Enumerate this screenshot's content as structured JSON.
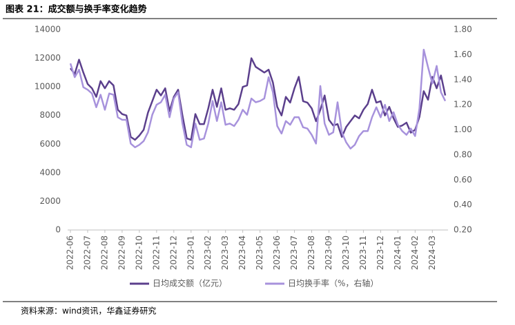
{
  "chart_data": {
    "type": "line",
    "title": "图表 21：成交额与换手率变化趋势",
    "source": "资料来源：wind资讯，华鑫证券研究",
    "categories": [
      "2022-06",
      null,
      null,
      null,
      "2022-07",
      null,
      null,
      null,
      "2022-08",
      null,
      null,
      null,
      "2022-09",
      null,
      null,
      null,
      "2022-10",
      null,
      null,
      null,
      "2022-11",
      null,
      null,
      null,
      "2022-12",
      null,
      null,
      null,
      "2023-01",
      null,
      null,
      null,
      "2023-02",
      null,
      null,
      null,
      "2023-03",
      null,
      null,
      null,
      "2023-04",
      null,
      null,
      null,
      "2023-05",
      null,
      null,
      null,
      "2023-06",
      null,
      null,
      null,
      "2023-07",
      null,
      null,
      null,
      "2023-08",
      null,
      null,
      null,
      "2023-09",
      null,
      null,
      null,
      "2023-10",
      null,
      null,
      null,
      "2023-11",
      null,
      null,
      null,
      "2023-12",
      null,
      null,
      null,
      "2024-01",
      null,
      null,
      null,
      "2024-02",
      null,
      null,
      null,
      "2024-03",
      null,
      null,
      null
    ],
    "series": [
      {
        "name": "日均成交额（亿元）",
        "color": "#5b3f8c",
        "values": [
          11300,
          10900,
          11900,
          11000,
          10200,
          9900,
          9300,
          10400,
          9900,
          10400,
          10100,
          8400,
          8100,
          8000,
          6500,
          6300,
          6600,
          7000,
          8200,
          9000,
          9800,
          9400,
          9900,
          8300,
          9300,
          9800,
          8000,
          6400,
          6300,
          8100,
          7400,
          7400,
          8500,
          9800,
          8600,
          9900,
          8400,
          8500,
          8400,
          8800,
          10000,
          10100,
          12000,
          11400,
          11200,
          11000,
          11200,
          10300,
          8600,
          8000,
          9300,
          8900,
          9900,
          10700,
          9000,
          8900,
          8500,
          7600,
          8400,
          9400,
          7700,
          7300,
          7400,
          6500,
          7200,
          7600,
          8000,
          7800,
          8400,
          8800,
          9800,
          8900,
          9000,
          8000,
          8600,
          7800,
          7200,
          7300,
          7500,
          6800,
          7000,
          7900,
          9700,
          9100,
          10700,
          9900,
          10800,
          9400
        ]
      },
      {
        "name": "日均换手率（%，右轴）",
        "color": "#a792dc",
        "axis": "y2",
        "values": [
          1.53,
          1.42,
          1.48,
          1.34,
          1.32,
          1.29,
          1.18,
          1.28,
          1.16,
          1.29,
          1.28,
          1.1,
          1.08,
          1.08,
          0.89,
          0.86,
          0.88,
          0.91,
          0.98,
          1.12,
          1.2,
          1.22,
          1.28,
          1.1,
          1.25,
          1.3,
          1.05,
          0.88,
          0.86,
          1.05,
          0.92,
          0.93,
          1.05,
          1.23,
          1.07,
          1.22,
          1.04,
          1.05,
          1.03,
          1.08,
          1.16,
          1.12,
          1.25,
          1.22,
          1.23,
          1.25,
          1.42,
          1.3,
          1.03,
          0.97,
          1.07,
          1.04,
          1.1,
          1.1,
          1.02,
          1.01,
          0.96,
          0.89,
          1.35,
          1.05,
          0.96,
          0.98,
          1.22,
          0.98,
          0.9,
          0.85,
          0.88,
          0.95,
          0.99,
          0.99,
          1.1,
          1.18,
          1.1,
          1.2,
          1.07,
          1.14,
          1.04,
          0.99,
          0.96,
          1.01,
          0.95,
          1.17,
          1.64,
          1.5,
          1.37,
          1.51,
          1.3,
          1.23
        ]
      }
    ],
    "ylim": [
      0,
      14000
    ],
    "yticks": [
      0,
      2000,
      4000,
      6000,
      8000,
      10000,
      12000,
      14000
    ],
    "y2lim": [
      0.2,
      1.8
    ],
    "y2ticks": [
      {
        "value": 0.2,
        "label": "0.20"
      },
      {
        "value": 0.4,
        "label": "0.40"
      },
      {
        "value": 0.6,
        "label": "0.60"
      },
      {
        "value": 0.8,
        "label": "0.80"
      },
      {
        "value": 1.0,
        "label": "1.00"
      },
      {
        "value": 1.2,
        "label": "1.20"
      },
      {
        "value": 1.4,
        "label": "1.40"
      },
      {
        "value": 1.6,
        "label": "1.60"
      },
      {
        "value": 1.8,
        "label": "1.80"
      }
    ],
    "legend": "bottom",
    "grid": false
  }
}
